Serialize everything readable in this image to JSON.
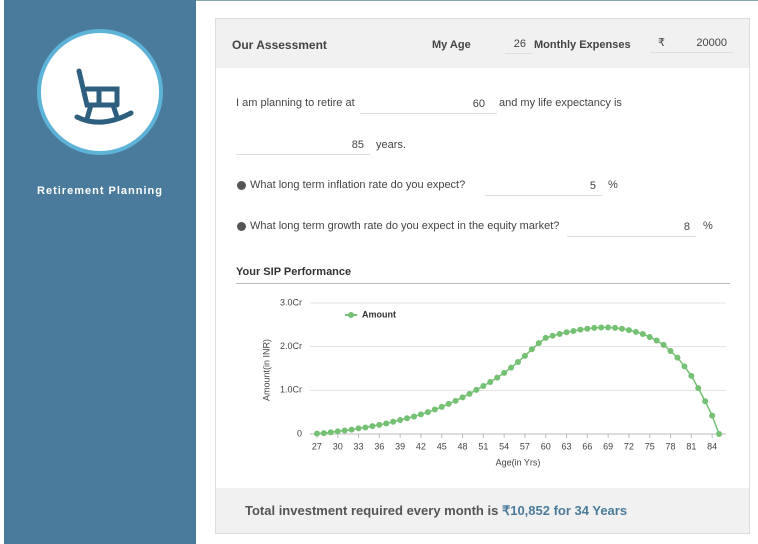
{
  "sidebar": {
    "title": "Retirement Planning"
  },
  "header": {
    "title": "Our Assessment",
    "age_label": "My Age",
    "age": 26,
    "expenses_label": "Monthly Expenses",
    "currency": "₹",
    "expenses": 20000
  },
  "form": {
    "retire_prefix": "I am planning to retire at",
    "retire_age": 60,
    "life_prefix": "and my life expectancy is",
    "life_expectancy": 85,
    "life_suffix": "years.",
    "inflation_question": "What long term inflation rate do you expect?",
    "inflation": 5,
    "inflation_unit": "%",
    "growth_question": "What long term growth rate do you expect in the equity market?",
    "growth": 8,
    "growth_unit": "%"
  },
  "section_title": "Your SIP Performance",
  "chart_data": {
    "type": "line",
    "x_label": "Age(in Yrs)",
    "y_label": "Amount(in INR)",
    "x": [
      27,
      28,
      29,
      30,
      31,
      32,
      33,
      34,
      35,
      36,
      37,
      38,
      39,
      40,
      41,
      42,
      43,
      44,
      45,
      46,
      47,
      48,
      49,
      50,
      51,
      52,
      53,
      54,
      55,
      56,
      57,
      58,
      59,
      60,
      61,
      62,
      63,
      64,
      65,
      66,
      67,
      68,
      69,
      70,
      71,
      72,
      73,
      74,
      75,
      76,
      77,
      78,
      79,
      80,
      81,
      82,
      83,
      84,
      85
    ],
    "series": [
      {
        "name": "Amount",
        "color": "#74c174",
        "values": [
          0.01,
          0.02,
          0.04,
          0.06,
          0.08,
          0.1,
          0.13,
          0.15,
          0.18,
          0.21,
          0.24,
          0.28,
          0.32,
          0.36,
          0.4,
          0.45,
          0.5,
          0.56,
          0.62,
          0.69,
          0.76,
          0.84,
          0.92,
          1.01,
          1.1,
          1.19,
          1.29,
          1.4,
          1.52,
          1.65,
          1.79,
          1.94,
          2.08,
          2.2,
          2.25,
          2.29,
          2.33,
          2.36,
          2.39,
          2.41,
          2.43,
          2.44,
          2.44,
          2.43,
          2.41,
          2.38,
          2.34,
          2.29,
          2.22,
          2.14,
          2.04,
          1.9,
          1.75,
          1.55,
          1.33,
          1.05,
          0.75,
          0.42,
          0
        ]
      }
    ],
    "xlim": [
      26,
      86
    ],
    "xticks": [
      27,
      30,
      33,
      36,
      39,
      42,
      45,
      48,
      51,
      54,
      57,
      60,
      63,
      66,
      69,
      72,
      75,
      78,
      81,
      84
    ],
    "ylim": [
      0,
      3
    ],
    "yticks": [
      0,
      {
        "value": 1,
        "label": "1.0Cr"
      },
      {
        "value": 2,
        "label": "2.0Cr"
      },
      {
        "value": 3,
        "label": "3.0Cr"
      }
    ],
    "grid": true,
    "legend": "top-left"
  },
  "footer": {
    "prefix": "Total investment required every month is",
    "highlight": "₹10,852 for 34 Years"
  }
}
